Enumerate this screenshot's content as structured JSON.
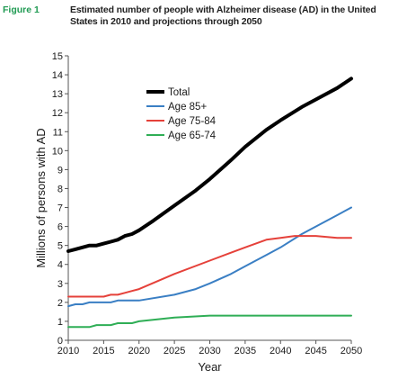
{
  "figure": {
    "label": "Figure 1",
    "title": "Estimated number of people with Alzheimer disease (AD) in the United States in 2010 and projections through 2050"
  },
  "colors": {
    "label": "#1f9a52",
    "axis": "#555555"
  },
  "chart_data": {
    "type": "line",
    "xlabel": "Year",
    "ylabel": "Millions of persons with AD",
    "xlim": [
      2010,
      2050
    ],
    "ylim": [
      0,
      15
    ],
    "xticks": [
      2010,
      2015,
      2020,
      2025,
      2030,
      2035,
      2040,
      2045,
      2050
    ],
    "yticks": [
      0,
      1,
      2,
      3,
      4,
      5,
      6,
      7,
      8,
      9,
      10,
      11,
      12,
      13,
      14,
      15
    ],
    "grid": false,
    "legend_position": "top-center",
    "series": [
      {
        "name": "Total",
        "color": "#000000",
        "x": [
          2010,
          2011,
          2012,
          2013,
          2014,
          2015,
          2016,
          2017,
          2018,
          2019,
          2020,
          2022,
          2025,
          2028,
          2030,
          2033,
          2035,
          2038,
          2040,
          2043,
          2045,
          2048,
          2050
        ],
        "y": [
          4.7,
          4.8,
          4.9,
          5.0,
          5.0,
          5.1,
          5.2,
          5.3,
          5.5,
          5.6,
          5.8,
          6.3,
          7.1,
          7.9,
          8.5,
          9.5,
          10.2,
          11.1,
          11.6,
          12.3,
          12.7,
          13.3,
          13.8
        ]
      },
      {
        "name": "Age 85+",
        "color": "#3a7fc4",
        "x": [
          2010,
          2011,
          2012,
          2013,
          2014,
          2015,
          2016,
          2017,
          2018,
          2019,
          2020,
          2025,
          2028,
          2030,
          2033,
          2035,
          2038,
          2040,
          2043,
          2045,
          2048,
          2050
        ],
        "y": [
          1.8,
          1.9,
          1.9,
          2.0,
          2.0,
          2.0,
          2.0,
          2.1,
          2.1,
          2.1,
          2.1,
          2.4,
          2.7,
          3.0,
          3.5,
          3.9,
          4.5,
          4.9,
          5.6,
          6.0,
          6.6,
          7.0
        ]
      },
      {
        "name": "Age 75-84",
        "color": "#e5413a",
        "x": [
          2010,
          2012,
          2014,
          2015,
          2016,
          2017,
          2018,
          2019,
          2020,
          2025,
          2030,
          2035,
          2038,
          2040,
          2042,
          2045,
          2048,
          2050
        ],
        "y": [
          2.3,
          2.3,
          2.3,
          2.3,
          2.4,
          2.4,
          2.5,
          2.6,
          2.7,
          3.5,
          4.2,
          4.9,
          5.3,
          5.4,
          5.5,
          5.5,
          5.4,
          5.4
        ]
      },
      {
        "name": "Age 65-74",
        "color": "#2fae56",
        "x": [
          2010,
          2012,
          2013,
          2014,
          2015,
          2016,
          2017,
          2018,
          2019,
          2020,
          2025,
          2030,
          2035,
          2040,
          2045,
          2050
        ],
        "y": [
          0.7,
          0.7,
          0.7,
          0.8,
          0.8,
          0.8,
          0.9,
          0.9,
          0.9,
          1.0,
          1.2,
          1.3,
          1.3,
          1.3,
          1.3,
          1.3
        ]
      }
    ]
  }
}
